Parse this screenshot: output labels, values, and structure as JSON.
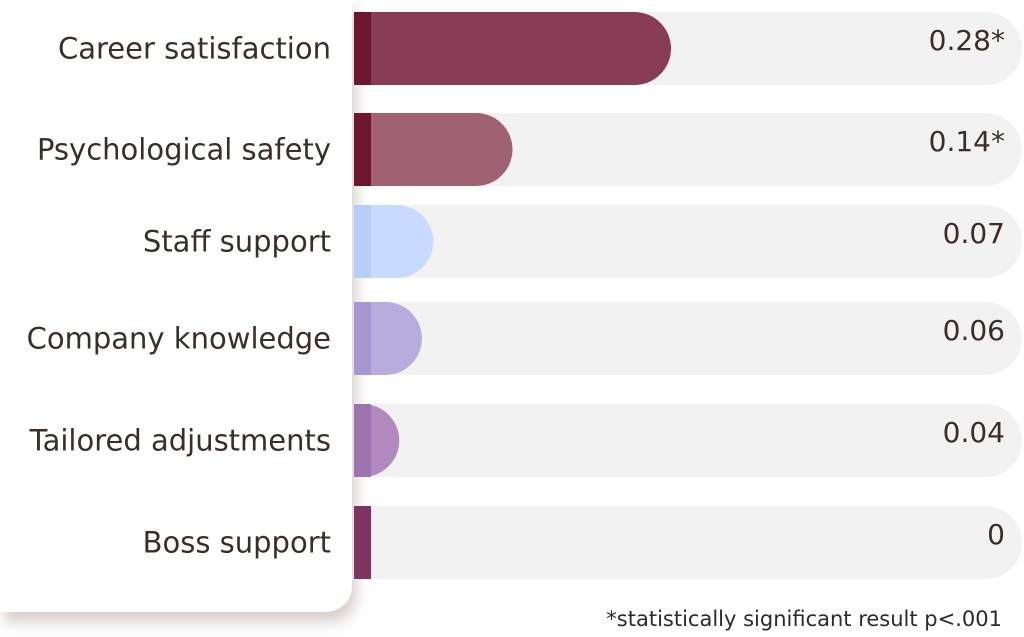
{
  "chart_data": {
    "type": "bar",
    "orientation": "horizontal",
    "categories": [
      "Career satisfaction",
      "Psychological safety",
      "Staff support",
      "Company knowledge",
      "Tailored adjustments",
      "Boss support"
    ],
    "values": [
      0.28,
      0.14,
      0.07,
      0.06,
      0.04,
      0
    ],
    "value_labels": [
      "0.28*",
      "0.14*",
      "0.07",
      "0.06",
      "0.04",
      "0"
    ],
    "significant": [
      true,
      true,
      false,
      false,
      false,
      false
    ],
    "xlim": [
      0,
      0.59
    ],
    "bar_colors": [
      "#883c55",
      "#a06173",
      "#c8daff",
      "#b8acdf",
      "#b289bf",
      "#9a4a76"
    ],
    "accent_colors": [
      "#6e1532",
      "#6e1532",
      "#b9cdf9",
      "#a597d2",
      "#9d74b0",
      "#7f3462"
    ],
    "track_color": "#f3f2f3",
    "title": "",
    "xlabel": "",
    "ylabel": "",
    "grid": false,
    "footnote": "*statistically significant result p<.001"
  }
}
